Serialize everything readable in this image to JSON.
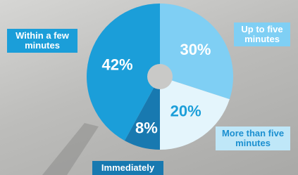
{
  "chart_data": {
    "type": "pie",
    "categories": [
      "Up to five minutes",
      "More than five minutes",
      "Immediately",
      "Within a few minutes"
    ],
    "values": [
      30,
      20,
      8,
      42
    ],
    "value_labels": [
      "30%",
      "20%",
      "8%",
      "42%"
    ],
    "colors": [
      "#7fcff4",
      "#e4f5fc",
      "#1879b0",
      "#1b9ed9"
    ]
  }
}
